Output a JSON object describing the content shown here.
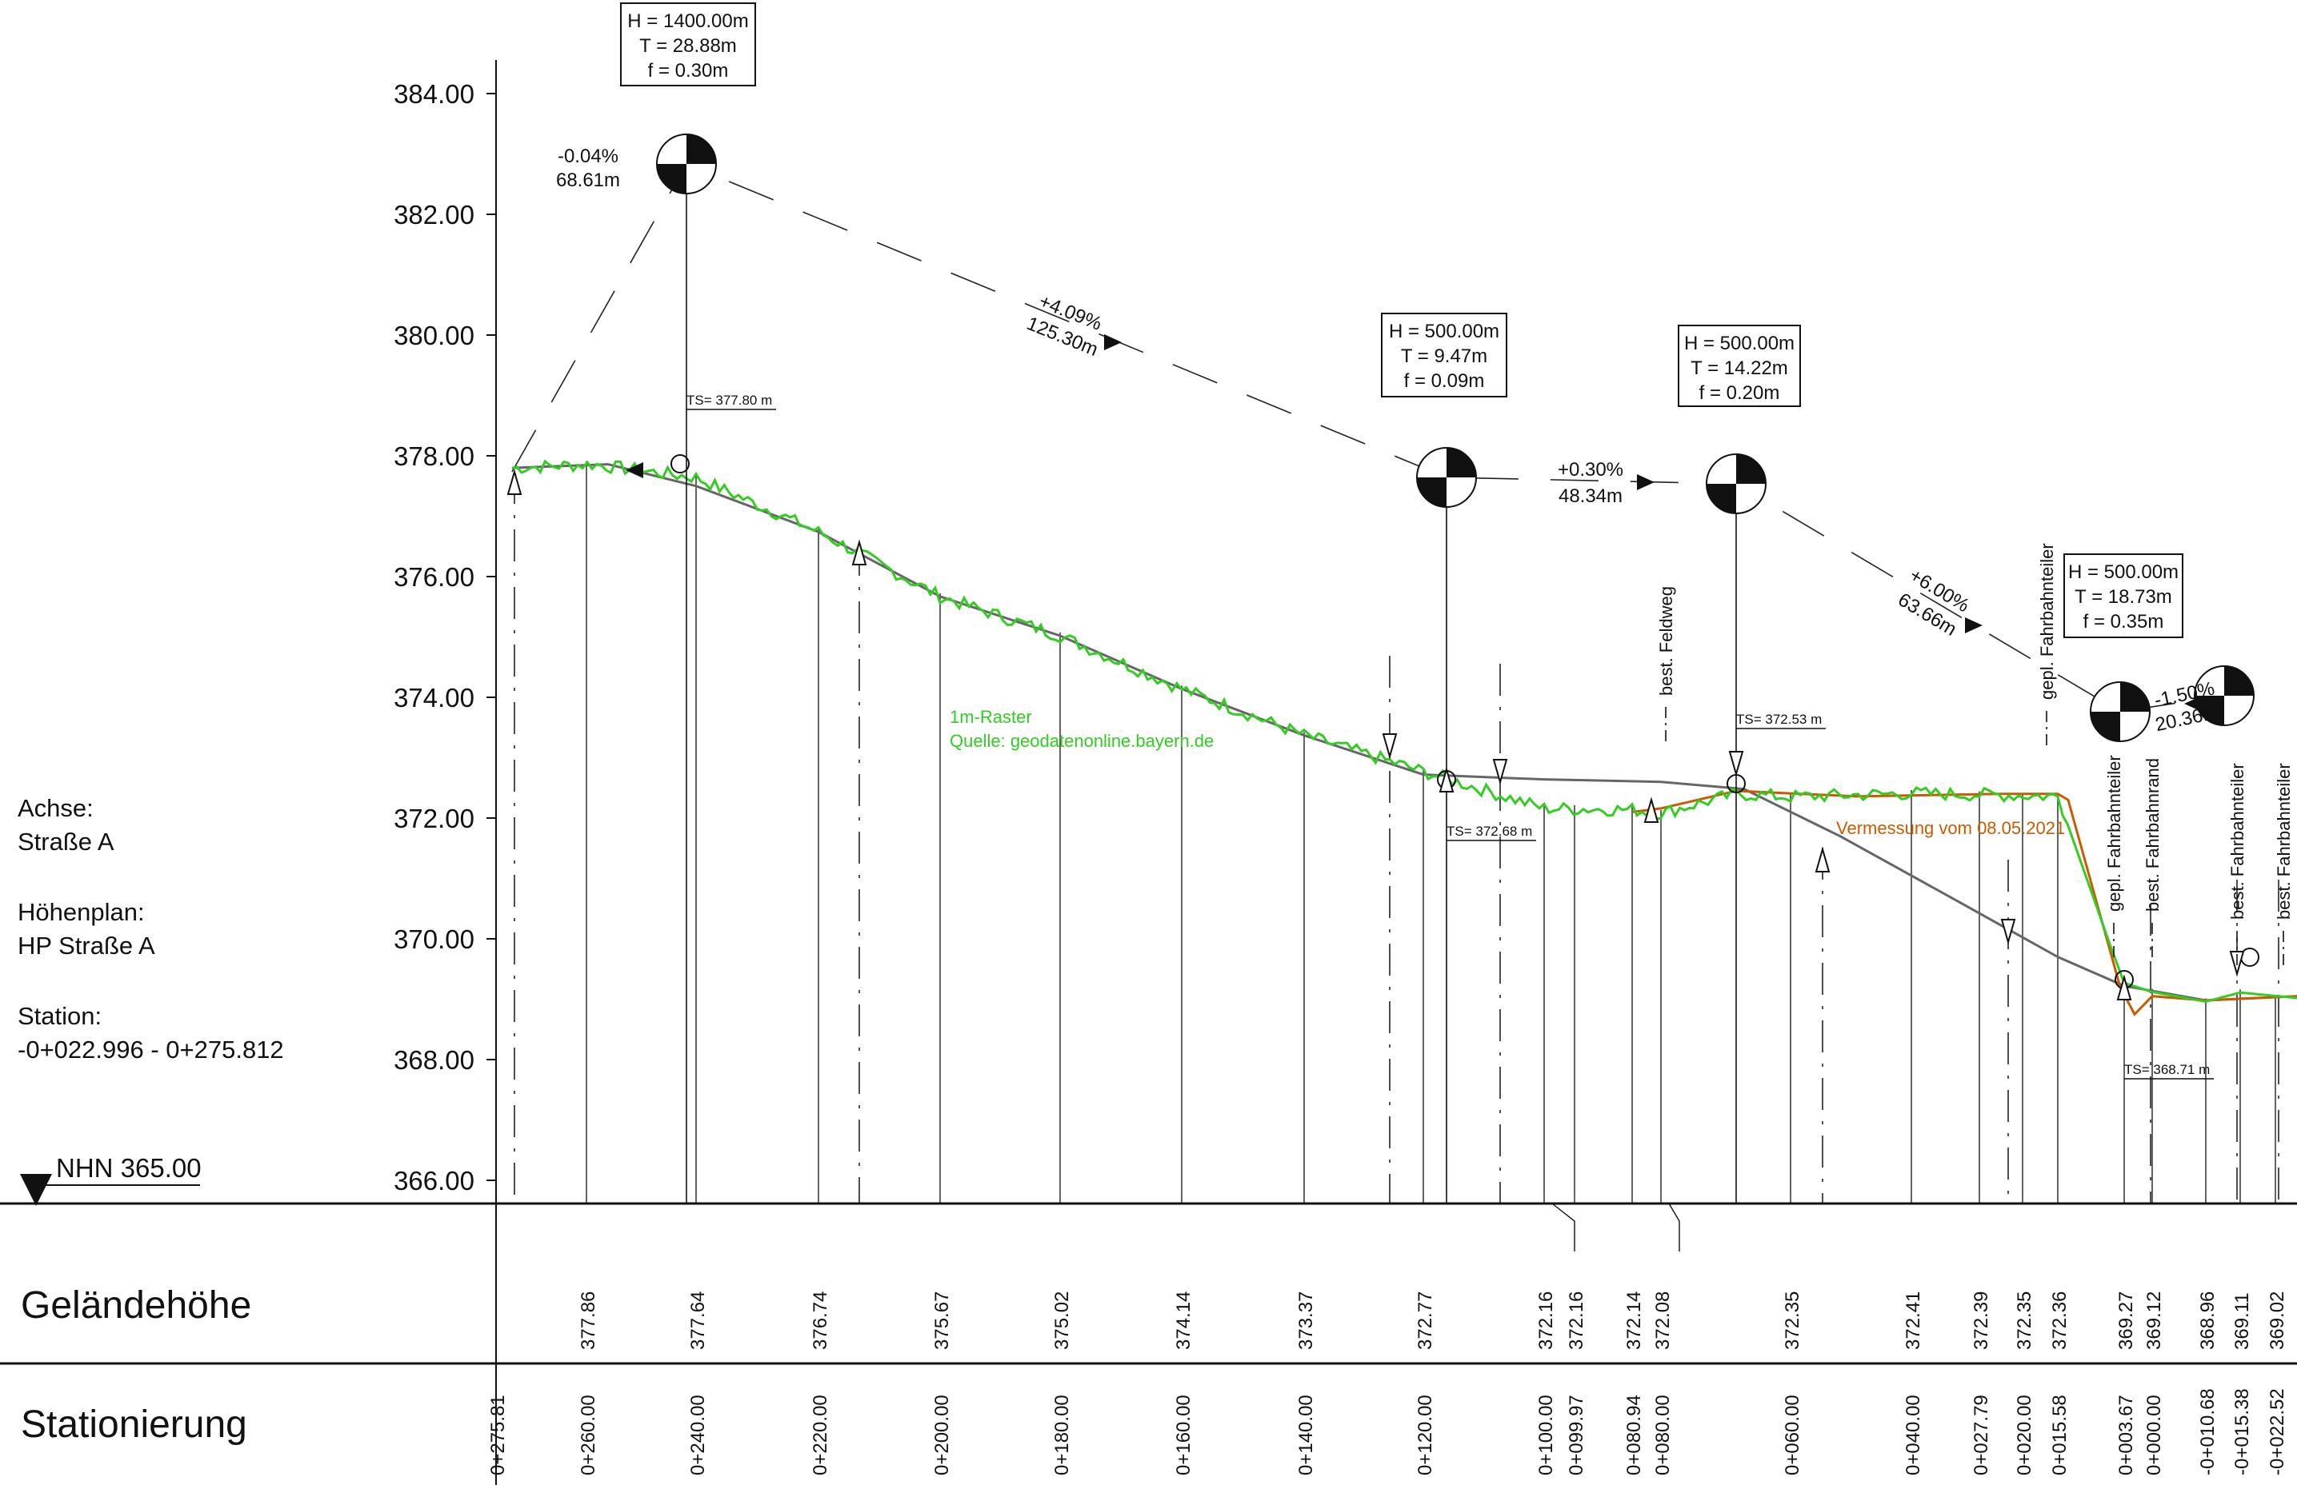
{
  "colors": {
    "terrain": "#33cc22",
    "survey": "#cc5a00",
    "road": "#666666",
    "line": "#111111"
  },
  "info": {
    "achse_label": "Achse:",
    "achse_value": "Straße A",
    "hoehenplan_label": "Höhenplan:",
    "hoehenplan_value": "HP Straße A",
    "station_label": "Station:",
    "station_value": "-0+022.996 - 0+275.812",
    "datum": "NHN 365.00"
  },
  "axis": {
    "y_ticks": [
      "384.00",
      "382.00",
      "380.00",
      "378.00",
      "376.00",
      "374.00",
      "372.00",
      "370.00",
      "368.00",
      "366.00"
    ],
    "y_min": 365.0,
    "y_max": 385.0
  },
  "legend": {
    "raster_line1": "1m-Raster",
    "raster_line2": "Quelle: geodatenonline.bayern.de",
    "vermessung": "Vermessung vom 08.05.2021"
  },
  "curves": [
    {
      "h": "H = 1400.00m",
      "t": "T = 28.88m",
      "f": "f = 0.30m"
    },
    {
      "h": "H = 500.00m",
      "t": "T = 9.47m",
      "f": "f = 0.09m"
    },
    {
      "h": "H = 500.00m",
      "t": "T = 14.22m",
      "f": "f = 0.20m"
    },
    {
      "h": "H = 500.00m",
      "t": "T = 18.73m",
      "f": "f = 0.35m"
    }
  ],
  "grades": [
    {
      "pct": "-0.04%",
      "len": "68.61m"
    },
    {
      "pct": "+4.09%",
      "len": "125.30m"
    },
    {
      "pct": "+0.30%",
      "len": "48.34m"
    },
    {
      "pct": "+6.00%",
      "len": "63.66m"
    },
    {
      "pct": "-1.50%",
      "len": "20.36m"
    }
  ],
  "ts_labels": [
    "TS= 377.80 m",
    "TS= 372.68 m",
    "TS= 372.53 m",
    "TS= 368.71 m"
  ],
  "features": [
    "best. Feldweg",
    "gepl. Fahrbahnteiler",
    "gepl. Fahrbahnteiler",
    "best. Fahrbahnrand",
    "best. Fahrbahnteiler",
    "best. Fahrbahnteiler"
  ],
  "table": {
    "row1_label": "Geländehöhe",
    "row2_label": "Stationierung"
  },
  "chart_data": {
    "type": "line",
    "title": "",
    "xlabel": "",
    "ylabel": "",
    "ylim": [
      365.0,
      385.0
    ],
    "columns": [
      {
        "station": "0+275.81",
        "height": ""
      },
      {
        "station": "0+260.00",
        "height": "377.86"
      },
      {
        "station": "0+240.00",
        "height": "377.64"
      },
      {
        "station": "0+220.00",
        "height": "376.74"
      },
      {
        "station": "0+200.00",
        "height": "375.67"
      },
      {
        "station": "0+180.00",
        "height": "375.02"
      },
      {
        "station": "0+160.00",
        "height": "374.14"
      },
      {
        "station": "0+140.00",
        "height": "373.37"
      },
      {
        "station": "0+120.00",
        "height": "372.77"
      },
      {
        "station": "0+100.00",
        "height": "372.16"
      },
      {
        "station": "0+099.97",
        "height": "372.16"
      },
      {
        "station": "0+080.94",
        "height": "372.14"
      },
      {
        "station": "0+080.00",
        "height": "372.08"
      },
      {
        "station": "0+060.00",
        "height": "372.35"
      },
      {
        "station": "0+040.00",
        "height": "372.41"
      },
      {
        "station": "0+027.79",
        "height": "372.39"
      },
      {
        "station": "0+020.00",
        "height": "372.35"
      },
      {
        "station": "0+015.58",
        "height": "372.36"
      },
      {
        "station": "0+003.67",
        "height": "369.27"
      },
      {
        "station": "0+000.00",
        "height": "369.12"
      },
      {
        "station": "-0+010.68",
        "height": "368.96"
      },
      {
        "station": "-0+015.38",
        "height": "369.11"
      },
      {
        "station": "-0+022.52",
        "height": "369.02"
      }
    ]
  }
}
